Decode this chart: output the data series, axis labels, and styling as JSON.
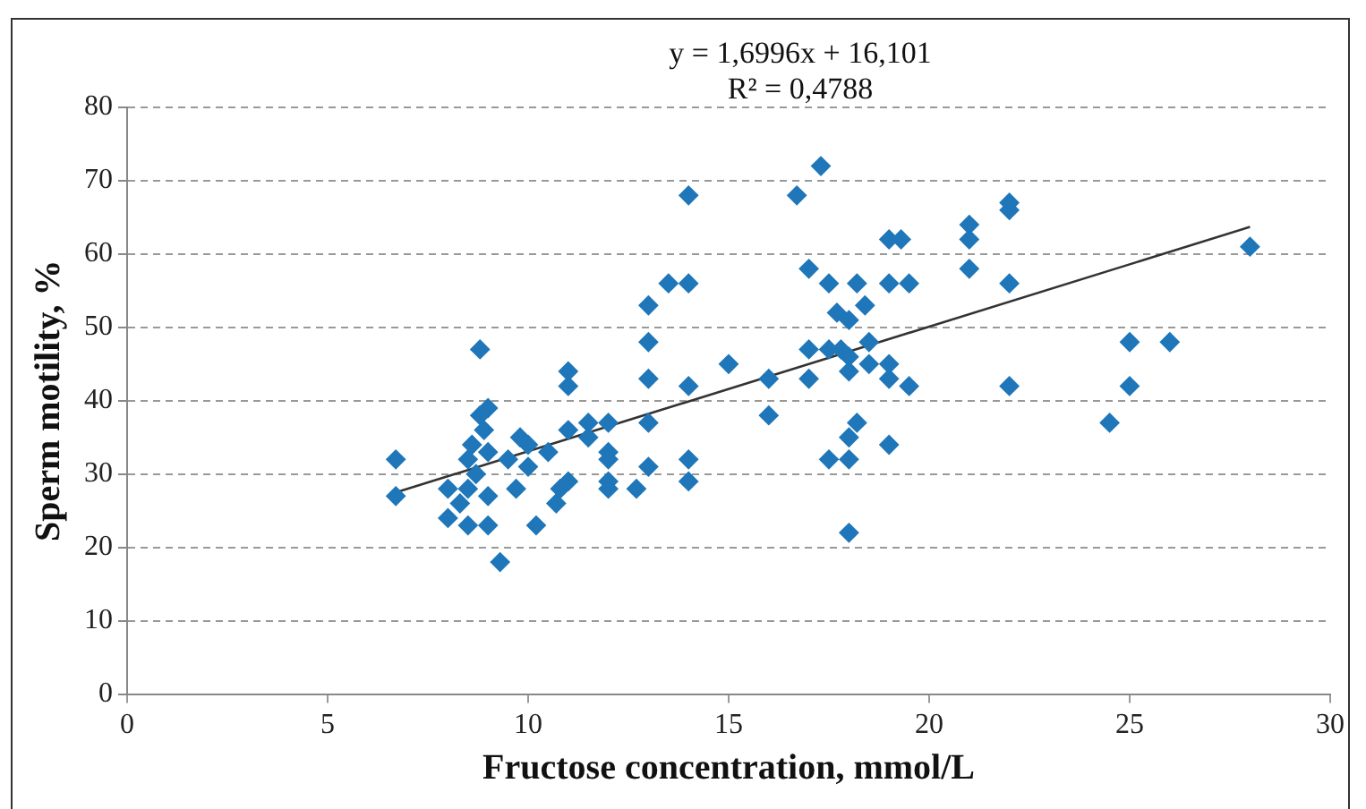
{
  "chart_data": {
    "type": "scatter",
    "xlabel": "Fructose concentration, mmol/L",
    "ylabel": "Sperm motility, %",
    "annotations": [
      "y = 1,6996x + 16,101",
      "R² = 0,4788"
    ],
    "xlim": [
      0,
      30
    ],
    "xticks": [
      0,
      5,
      10,
      15,
      20,
      25,
      30
    ],
    "ylim": [
      0,
      80
    ],
    "yticks": [
      0,
      10,
      20,
      30,
      40,
      50,
      60,
      70,
      80
    ],
    "grid": "y",
    "legend": false,
    "marker": "diamond",
    "series": [
      {
        "color": "#1f77b9",
        "x": [
          6.7,
          6.7,
          8,
          8,
          8.3,
          8.5,
          8.5,
          8.5,
          8.6,
          8.7,
          8.8,
          8.8,
          8.9,
          9,
          9,
          9,
          9,
          9.3,
          9.5,
          9.7,
          9.8,
          10,
          10,
          10.2,
          10.5,
          10.7,
          10.8,
          11,
          11,
          11,
          11,
          11.5,
          11.5,
          12,
          12,
          12,
          12,
          12,
          12.7,
          13,
          13,
          13,
          13,
          13,
          13.5,
          14,
          14,
          14,
          14,
          14,
          15,
          16,
          16,
          16.7,
          17,
          17,
          17,
          17.3,
          17.5,
          17.5,
          17.5,
          17.7,
          17.8,
          18,
          18,
          18,
          18,
          18,
          18,
          18.2,
          18.2,
          18.4,
          18.5,
          18.5,
          19,
          19,
          19,
          19,
          19,
          19.3,
          19.5,
          19.5,
          21,
          21,
          21,
          22,
          22,
          22,
          22,
          24.5,
          25,
          25,
          26,
          28
        ],
        "values": [
          32,
          27,
          28,
          24,
          26,
          23,
          28,
          32,
          34,
          30,
          47,
          38,
          36,
          39,
          33,
          27,
          23,
          18,
          32,
          28,
          35,
          34,
          31,
          23,
          33,
          26,
          28,
          44,
          42,
          36,
          29,
          35,
          37,
          37,
          33,
          32,
          29,
          28,
          28,
          53,
          48,
          43,
          37,
          31,
          56,
          68,
          56,
          42,
          32,
          29,
          45,
          43,
          38,
          68,
          58,
          47,
          43,
          72,
          56,
          47,
          32,
          52,
          47,
          51,
          46,
          44,
          35,
          32,
          22,
          56,
          37,
          53,
          48,
          45,
          62,
          56,
          45,
          43,
          34,
          62,
          56,
          42,
          64,
          62,
          58,
          67,
          66,
          56,
          42,
          37,
          48,
          42,
          48,
          61
        ]
      },
      {
        "type": "line",
        "color": "#333333",
        "marker": "none",
        "line_style": "solid",
        "x": [
          6.7,
          28
        ],
        "values": [
          27.5,
          63.7
        ]
      }
    ]
  }
}
